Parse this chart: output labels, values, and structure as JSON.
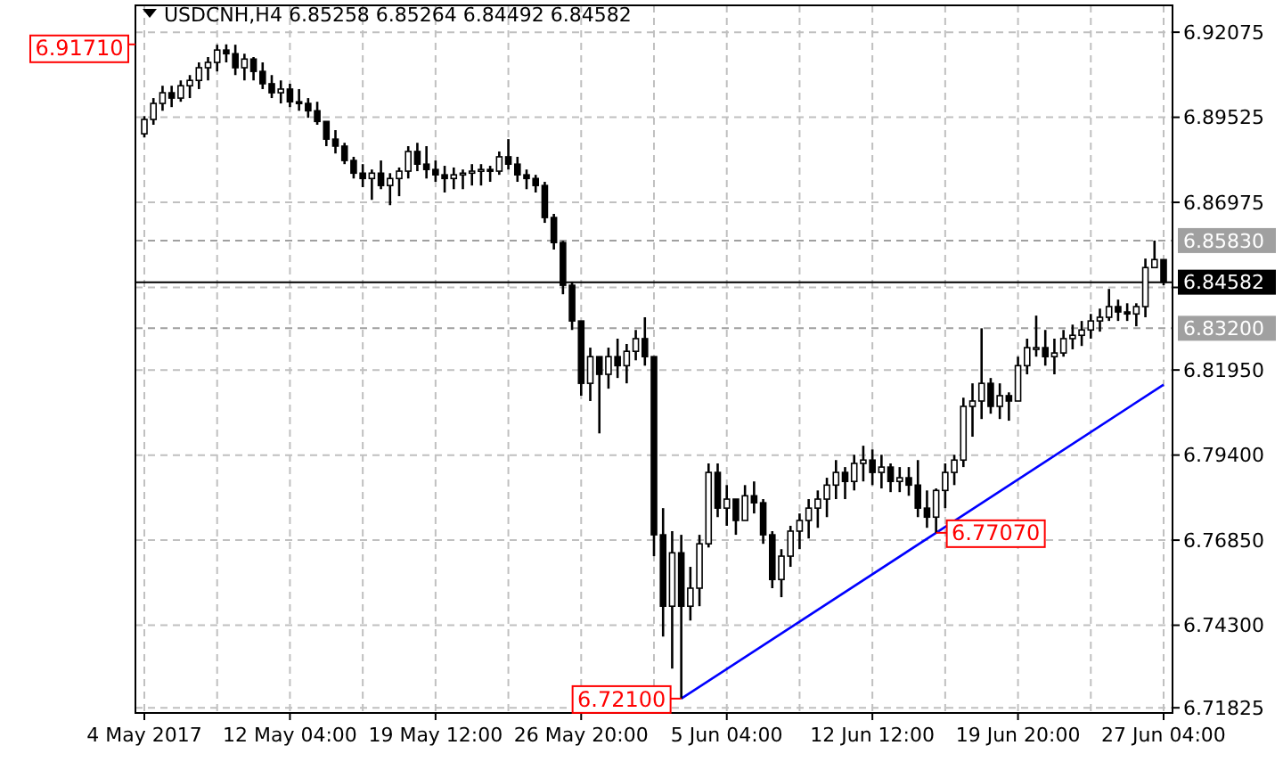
{
  "chart_data": {
    "type": "candlestick",
    "title": "USDCNH,H4 6.85258 6.85264 6.84492 6.84582",
    "color": "#000000",
    "categories": [
      "4 May 2017",
      null,
      null,
      null,
      null,
      null,
      null,
      null,
      null,
      null,
      null,
      null,
      null,
      null,
      null,
      null,
      "12 May 04:00",
      null,
      null,
      null,
      null,
      null,
      null,
      null,
      null,
      null,
      null,
      null,
      null,
      null,
      null,
      null,
      "19 May 12:00",
      null,
      null,
      null,
      null,
      null,
      null,
      null,
      null,
      null,
      null,
      null,
      null,
      null,
      null,
      null,
      "26 May 20:00",
      null,
      null,
      null,
      null,
      null,
      null,
      null,
      null,
      null,
      null,
      null,
      null,
      null,
      null,
      null,
      "5 Jun 04:00",
      null,
      null,
      null,
      null,
      null,
      null,
      null,
      null,
      null,
      null,
      null,
      null,
      null,
      null,
      null,
      "12 Jun 12:00",
      null,
      null,
      null,
      null,
      null,
      null,
      null,
      null,
      null,
      null,
      null,
      null,
      null,
      null,
      null,
      "19 Jun 20:00",
      null,
      null,
      null,
      null,
      null,
      null,
      null,
      null,
      null,
      null,
      null,
      null,
      null,
      null,
      null,
      "27 Jun 04:00"
    ],
    "ohlc": [
      [
        6.8903,
        6.8956,
        6.8892,
        6.8946
      ],
      [
        6.8946,
        6.901,
        6.893,
        6.8994
      ],
      [
        6.8994,
        6.9047,
        6.8972,
        6.9026
      ],
      [
        6.9026,
        6.9047,
        6.8983,
        6.901
      ],
      [
        6.901,
        6.9063,
        6.8999,
        6.9047
      ],
      [
        6.9047,
        6.9079,
        6.901,
        6.9063
      ],
      [
        6.9063,
        6.9117,
        6.9037,
        6.9101
      ],
      [
        6.9101,
        6.9133,
        6.9063,
        6.9117
      ],
      [
        6.9117,
        6.917,
        6.909,
        6.9154
      ],
      [
        6.9154,
        6.9171,
        6.9117,
        6.9143
      ],
      [
        6.9143,
        6.917,
        6.9079,
        6.9101
      ],
      [
        6.9101,
        6.9143,
        6.9063,
        6.9127
      ],
      [
        6.9127,
        6.9133,
        6.9063,
        6.909
      ],
      [
        6.909,
        6.9117,
        6.9037,
        6.9053
      ],
      [
        6.9053,
        6.9079,
        6.901,
        6.9026
      ],
      [
        6.9026,
        6.9063,
        6.8994,
        6.9037
      ],
      [
        6.9037,
        6.9053,
        6.8983,
        6.8999
      ],
      [
        6.8999,
        6.9037,
        6.8972,
        6.8994
      ],
      [
        6.8994,
        6.901,
        6.8951,
        6.8972
      ],
      [
        6.8972,
        6.8999,
        6.893,
        6.894
      ],
      [
        6.894,
        6.894,
        6.8866,
        6.8887
      ],
      [
        6.8887,
        6.8914,
        6.8844,
        6.8866
      ],
      [
        6.8866,
        6.8876,
        6.8812,
        6.8823
      ],
      [
        6.8823,
        6.8834,
        6.8769,
        6.8785
      ],
      [
        6.8785,
        6.8812,
        6.8743,
        6.8769
      ],
      [
        6.8769,
        6.8796,
        6.8705,
        6.8785
      ],
      [
        6.8785,
        6.8823,
        6.8737,
        6.8748
      ],
      [
        6.8748,
        6.8785,
        6.8689,
        6.8769
      ],
      [
        6.8769,
        6.8802,
        6.8716,
        6.8791
      ],
      [
        6.8791,
        6.8866,
        6.8769,
        6.885
      ],
      [
        6.885,
        6.8876,
        6.8791,
        6.8812
      ],
      [
        6.8812,
        6.8866,
        6.8769,
        6.8796
      ],
      [
        6.8796,
        6.8823,
        6.8759,
        6.878
      ],
      [
        6.878,
        6.8807,
        6.8727,
        6.8769
      ],
      [
        6.8769,
        6.8802,
        6.8737,
        6.878
      ],
      [
        6.878,
        6.8796,
        6.8737,
        6.8785
      ],
      [
        6.8785,
        6.8812,
        6.8748,
        6.8791
      ],
      [
        6.8791,
        6.8812,
        6.8748,
        6.8796
      ],
      [
        6.8796,
        6.8807,
        6.8759,
        6.8791
      ],
      [
        6.8791,
        6.885,
        6.878,
        6.8834
      ],
      [
        6.8834,
        6.8887,
        6.8796,
        6.8812
      ],
      [
        6.8812,
        6.8834,
        6.8759,
        6.878
      ],
      [
        6.878,
        6.8796,
        6.8737,
        6.8769
      ],
      [
        6.8769,
        6.878,
        6.8727,
        6.8748
      ],
      [
        6.8748,
        6.8759,
        6.8636,
        6.8652
      ],
      [
        6.8652,
        6.8663,
        6.8556,
        6.8577
      ],
      [
        6.8577,
        6.8582,
        6.8422,
        6.8449
      ],
      [
        6.8449,
        6.846,
        6.8315,
        6.8342
      ],
      [
        6.8342,
        6.8342,
        6.8118,
        6.8155
      ],
      [
        6.8155,
        6.8262,
        6.8102,
        6.8235
      ],
      [
        6.8235,
        6.8235,
        6.8005,
        6.8182
      ],
      [
        6.8182,
        6.8262,
        6.8139,
        6.8235
      ],
      [
        6.8235,
        6.8289,
        6.8171,
        6.8208
      ],
      [
        6.8208,
        6.8273,
        6.8155,
        6.8251
      ],
      [
        6.8251,
        6.8315,
        6.8224,
        6.8289
      ],
      [
        6.8289,
        6.8353,
        6.8208,
        6.8235
      ],
      [
        6.8235,
        6.8235,
        6.7637,
        6.7701
      ],
      [
        6.7701,
        6.7781,
        6.7396,
        6.7487
      ],
      [
        6.7487,
        6.7712,
        6.73,
        6.7647
      ],
      [
        6.7647,
        6.7701,
        6.721,
        6.7487
      ],
      [
        6.7487,
        6.7605,
        6.7444,
        6.7541
      ],
      [
        6.7541,
        6.7701,
        6.7487,
        6.7674
      ],
      [
        6.7674,
        6.7915,
        6.7663,
        6.7888
      ],
      [
        6.7888,
        6.7915,
        6.7754,
        6.7781
      ],
      [
        6.7781,
        6.785,
        6.7728,
        6.7808
      ],
      [
        6.7808,
        6.7808,
        6.7701,
        6.7744
      ],
      [
        6.7744,
        6.785,
        6.7744,
        6.7818
      ],
      [
        6.7818,
        6.7861,
        6.7765,
        6.7797
      ],
      [
        6.7797,
        6.7808,
        6.7674,
        6.7701
      ],
      [
        6.7701,
        6.7712,
        6.7541,
        6.7567
      ],
      [
        6.7567,
        6.7658,
        6.7514,
        6.7637
      ],
      [
        6.7637,
        6.7728,
        6.7605,
        6.7712
      ],
      [
        6.7712,
        6.7765,
        6.7658,
        6.7744
      ],
      [
        6.7744,
        6.7808,
        6.769,
        6.7781
      ],
      [
        6.7781,
        6.7834,
        6.7722,
        6.7808
      ],
      [
        6.7808,
        6.7872,
        6.7754,
        6.785
      ],
      [
        6.785,
        6.7925,
        6.7808,
        6.7888
      ],
      [
        6.7888,
        6.7904,
        6.7808,
        6.7861
      ],
      [
        6.7861,
        6.7941,
        6.7834,
        6.7915
      ],
      [
        6.7915,
        6.7968,
        6.7861,
        6.7925
      ],
      [
        6.7925,
        6.7957,
        6.785,
        6.7888
      ],
      [
        6.7888,
        6.7941,
        6.784,
        6.7904
      ],
      [
        6.7904,
        6.7915,
        6.7829,
        6.7861
      ],
      [
        6.7861,
        6.7904,
        6.7829,
        6.7872
      ],
      [
        6.7872,
        6.7904,
        6.7818,
        6.785
      ],
      [
        6.785,
        6.7925,
        6.7754,
        6.7781
      ],
      [
        6.7781,
        6.7834,
        6.7722,
        6.7754
      ],
      [
        6.7754,
        6.784,
        6.7707,
        6.7834
      ],
      [
        6.7834,
        6.7915,
        6.7781,
        6.7888
      ],
      [
        6.7888,
        6.7941,
        6.785,
        6.7925
      ],
      [
        6.7925,
        6.8112,
        6.7904,
        6.8086
      ],
      [
        6.8086,
        6.8155,
        6.7995,
        6.8102
      ],
      [
        6.8102,
        6.832,
        6.8048,
        6.8155
      ],
      [
        6.8155,
        6.8171,
        6.8064,
        6.8086
      ],
      [
        6.8086,
        6.8155,
        6.8048,
        6.8118
      ],
      [
        6.8118,
        6.8128,
        6.8043,
        6.8102
      ],
      [
        6.8102,
        6.8235,
        6.8102,
        6.8208
      ],
      [
        6.8208,
        6.8289,
        6.8182,
        6.8262
      ],
      [
        6.8262,
        6.8358,
        6.8235,
        6.8262
      ],
      [
        6.8262,
        6.8315,
        6.8208,
        6.8235
      ],
      [
        6.8235,
        6.8289,
        6.8182,
        6.8246
      ],
      [
        6.8246,
        6.8315,
        6.8235,
        6.8289
      ],
      [
        6.8289,
        6.8331,
        6.8257,
        6.8299
      ],
      [
        6.8299,
        6.8342,
        6.8267,
        6.8315
      ],
      [
        6.8315,
        6.8363,
        6.8289,
        6.8342
      ],
      [
        6.8342,
        6.8379,
        6.831,
        6.8353
      ],
      [
        6.8353,
        6.8438,
        6.8342,
        6.8385
      ],
      [
        6.8385,
        6.8406,
        6.8342,
        6.8369
      ],
      [
        6.8369,
        6.8395,
        6.8342,
        6.8363
      ],
      [
        6.8363,
        6.8395,
        6.8326,
        6.8385
      ],
      [
        6.8385,
        6.8529,
        6.8353,
        6.8502
      ],
      [
        6.8502,
        6.8583,
        6.8502,
        6.8526
      ],
      [
        6.85258,
        6.85264,
        6.84492,
        6.84582
      ]
    ],
    "series": [
      {
        "type": "line",
        "color": "#0000ff",
        "values": [
          null,
          null,
          null,
          null,
          null,
          null,
          null,
          null,
          null,
          null,
          null,
          null,
          null,
          null,
          null,
          null,
          null,
          null,
          null,
          null,
          null,
          null,
          null,
          null,
          null,
          null,
          null,
          null,
          null,
          null,
          null,
          null,
          null,
          null,
          null,
          null,
          null,
          null,
          null,
          null,
          null,
          null,
          null,
          null,
          null,
          null,
          null,
          null,
          null,
          null,
          null,
          null,
          null,
          null,
          null,
          null,
          null,
          null,
          null,
          6.721,
          null,
          null,
          null,
          null,
          null,
          null,
          null,
          null,
          null,
          null,
          null,
          null,
          null,
          null,
          null,
          null,
          null,
          null,
          null,
          null,
          null,
          null,
          null,
          null,
          null,
          null,
          null,
          6.7707,
          null,
          null,
          null,
          null,
          null,
          null,
          null,
          null,
          null,
          null,
          null,
          null,
          null,
          null,
          null,
          null,
          null,
          null,
          null,
          null,
          null,
          null,
          null,
          null,
          6.8151
        ]
      }
    ],
    "annotations": [
      "6.91710",
      "6.72100",
      "6.77070"
    ],
    "ref_lines": [
      {
        "axis": "y",
        "value": 6.8583,
        "label": "6.85830",
        "color": "#a0a0a0",
        "line_style": "dashed"
      },
      {
        "axis": "y",
        "value": 6.84582,
        "label": "6.84582",
        "color": "#000000",
        "line_style": "solid"
      },
      {
        "axis": "y",
        "value": 6.832,
        "label": "6.83200",
        "color": "#a0a0a0",
        "line_style": "dashed"
      }
    ],
    "ylim": [
      6.7167,
      6.9288
    ],
    "yticks": [
      6.92075,
      6.89525,
      6.86975,
      {
        "value": 6.84425,
        "label": null
      },
      {
        "value": 6.8195,
        "label": "6.81950"
      },
      {
        "value": 6.794,
        "label": "6.79400"
      },
      {
        "value": 6.7685,
        "label": "6.76850"
      },
      {
        "value": 6.743,
        "label": "6.74300"
      },
      6.71825
    ],
    "grid": true
  }
}
